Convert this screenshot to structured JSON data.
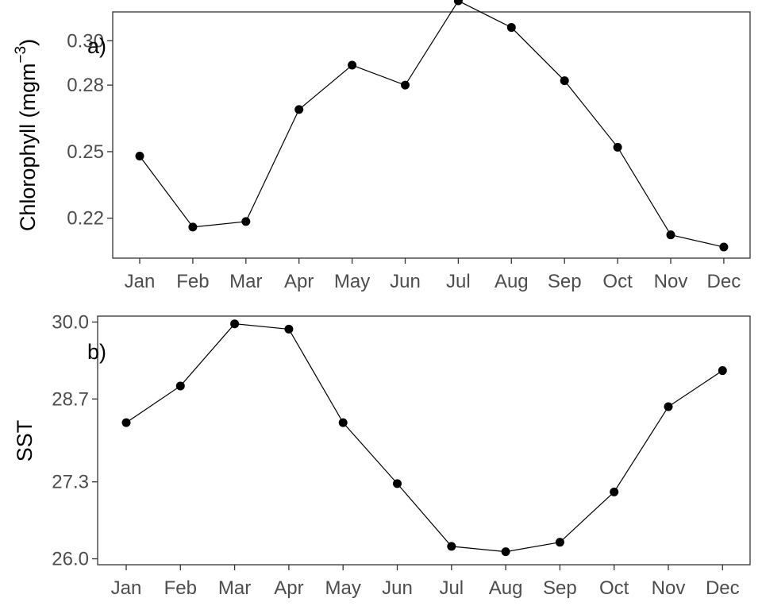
{
  "chart_data": [
    {
      "panel_tag": "a)",
      "type": "line",
      "ylabel": "Chlorophyll (mgm",
      "ylabel_sup": "−3",
      "ylabel_close": ")",
      "categories": [
        "Jan",
        "Feb",
        "Mar",
        "Apr",
        "May",
        "Jun",
        "Jul",
        "Aug",
        "Sep",
        "Oct",
        "Nov",
        "Dec"
      ],
      "values": [
        0.248,
        0.216,
        0.2185,
        0.269,
        0.289,
        0.28,
        0.318,
        0.306,
        0.282,
        0.252,
        0.2125,
        0.207
      ],
      "ylim": [
        0.202,
        0.313
      ],
      "yticks": [
        0.22,
        0.25,
        0.28,
        0.3
      ],
      "ytick_labels": [
        "0.22",
        "0.25",
        "0.28",
        "0.30"
      ],
      "grid": false,
      "color": "#000000"
    },
    {
      "panel_tag": "b)",
      "type": "line",
      "ylabel": "SST",
      "categories": [
        "Jan",
        "Feb",
        "Mar",
        "Apr",
        "May",
        "Jun",
        "Jul",
        "Aug",
        "Sep",
        "Oct",
        "Nov",
        "Dec"
      ],
      "values": [
        28.3,
        28.92,
        29.97,
        29.88,
        28.3,
        27.27,
        26.21,
        26.12,
        26.28,
        27.13,
        28.57,
        29.18
      ],
      "ylim": [
        25.9,
        30.1
      ],
      "yticks": [
        26.0,
        27.3,
        28.7,
        30.0
      ],
      "ytick_labels": [
        "26.0",
        "27.3",
        "28.7",
        "30.0"
      ],
      "grid": false,
      "color": "#000000"
    }
  ]
}
